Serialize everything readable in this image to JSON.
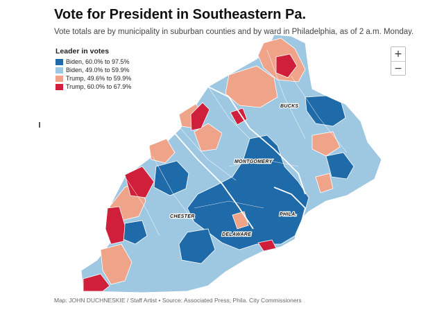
{
  "header": {
    "title": "Vote for President in Southeastern Pa.",
    "subtitle": "Vote totals are by municipality in suburban counties and by ward in Philadelphia, as of 2 a.m. Monday."
  },
  "legend": {
    "title": "Leader in votes",
    "items": [
      {
        "label": "Biden, 60.0% to 97.5%",
        "color": "#1f6aa8"
      },
      {
        "label": "Biden, 49.0% to 59.9%",
        "color": "#9ec7e2"
      },
      {
        "label": "Trump, 49.6% to 59.9%",
        "color": "#efa48a"
      },
      {
        "label": "Trump, 60.0% to 67.9%",
        "color": "#cf1f3a"
      }
    ]
  },
  "zoom": {
    "in_label": "+",
    "out_label": "−"
  },
  "map": {
    "county_labels": [
      "BUCKS",
      "MONTGOMERY",
      "CHESTER",
      "DELAWARE",
      "PHILA."
    ],
    "colors": {
      "biden_strong": "#1f6aa8",
      "biden_lean": "#9ec7e2",
      "trump_lean": "#efa48a",
      "trump_strong": "#cf1f3a",
      "border": "#ffffff"
    }
  },
  "footer": {
    "credit": "Map: JOHN DUCHNESKIE / Staff Artist • Source: Associated Press; Phila. City Commissioners"
  }
}
